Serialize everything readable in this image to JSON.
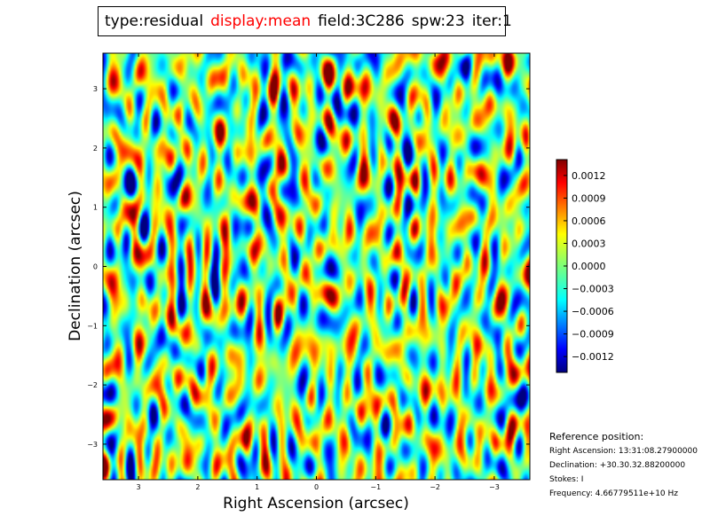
{
  "title": {
    "type": "type:residual",
    "display": "display:mean",
    "field": "field:3C286",
    "spw": "spw:23",
    "iter": "iter:1"
  },
  "colors": {
    "highlight": "#ff0000",
    "frame": "#000000"
  },
  "reference": {
    "heading": "Reference position:",
    "ra": "Right Ascension: 13:31:08.27900000",
    "dec": "Declination: +30.30.32.88200000",
    "stokes": "Stokes: I",
    "frequency": "Frequency: 4.66779511e+10 Hz"
  },
  "chart_data": {
    "type": "heatmap",
    "colormap": "jet",
    "xlabel": "Right Ascension (arcsec)",
    "ylabel": "Declination (arcsec)",
    "xlim": [
      3.6,
      -3.6
    ],
    "ylim": [
      -3.6,
      3.6
    ],
    "xticks": [
      3,
      2,
      1,
      0,
      -1,
      -2,
      -3
    ],
    "xtick_labels": [
      "3",
      "2",
      "1",
      "0",
      "−1",
      "−2",
      "−3"
    ],
    "yticks": [
      3,
      2,
      1,
      0,
      -1,
      -2,
      -3
    ],
    "ytick_labels": [
      "3",
      "2",
      "1",
      "0",
      "−1",
      "−2",
      "−3"
    ],
    "colorbar": {
      "range": [
        -0.00141,
        0.00141
      ],
      "ticks": [
        0.0012,
        0.0009,
        0.0006,
        0.0003,
        0.0,
        -0.0003,
        -0.0006,
        -0.0009,
        -0.0012
      ],
      "tick_labels": [
        "0.0012",
        "0.0009",
        "0.0006",
        "0.0003",
        "0.0000",
        "−0.0003",
        "−0.0006",
        "−0.0009",
        "−0.0012"
      ]
    }
  }
}
